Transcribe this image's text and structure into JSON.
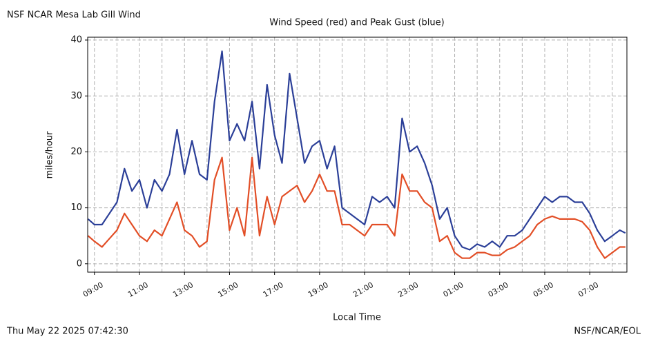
{
  "page": {
    "site": "NSF NCAR Mesa Lab Gill Wind",
    "timestamp": "Thu May 22 2025 07:42:30",
    "credit": "NSF/NCAR/EOL"
  },
  "chart_data": {
    "type": "line",
    "title": "Wind Speed (red) and Peak Gust (blue)",
    "x_label": "Local Time",
    "y_label": "miles/hour",
    "x": [
      "08:43",
      "09:00",
      "09:20",
      "09:40",
      "10:00",
      "10:20",
      "10:40",
      "11:00",
      "11:20",
      "11:40",
      "12:00",
      "12:20",
      "12:40",
      "13:00",
      "13:20",
      "13:40",
      "14:00",
      "14:20",
      "14:40",
      "15:00",
      "15:20",
      "15:40",
      "16:00",
      "16:20",
      "16:40",
      "17:00",
      "17:20",
      "17:40",
      "18:00",
      "18:20",
      "18:40",
      "19:00",
      "19:20",
      "19:40",
      "20:00",
      "20:20",
      "20:40",
      "21:00",
      "21:20",
      "21:40",
      "22:00",
      "22:20",
      "22:40",
      "23:00",
      "23:20",
      "23:40",
      "00:00",
      "00:20",
      "00:40",
      "01:00",
      "01:20",
      "01:40",
      "02:00",
      "02:20",
      "02:40",
      "03:00",
      "03:20",
      "03:40",
      "04:00",
      "04:20",
      "04:40",
      "05:00",
      "05:20",
      "05:40",
      "06:00",
      "06:20",
      "06:40",
      "07:00",
      "07:20",
      "07:40",
      "08:00",
      "08:20",
      "08:35"
    ],
    "series": [
      {
        "name": "Peak Gust",
        "color": "#2b3f98",
        "values": [
          8,
          7,
          7,
          9,
          11,
          17,
          13,
          15,
          10,
          15,
          13,
          16,
          24,
          16,
          22,
          16,
          15,
          29,
          38,
          22,
          25,
          22,
          29,
          17,
          32,
          23,
          18,
          34,
          26,
          18,
          21,
          22,
          17,
          21,
          10,
          9,
          8,
          7,
          12,
          11,
          12,
          10,
          26,
          20,
          21,
          18,
          14,
          8,
          10,
          5,
          3,
          2.5,
          3.5,
          3,
          4,
          3,
          5,
          5,
          6,
          8,
          10,
          12,
          11,
          12,
          12,
          11,
          11,
          9,
          6,
          4,
          5,
          6,
          5.5
        ]
      },
      {
        "name": "Wind Speed",
        "color": "#e24e26",
        "values": [
          5,
          4,
          3,
          4.5,
          6,
          9,
          7,
          5,
          4,
          6,
          5,
          8,
          11,
          6,
          5,
          3,
          4,
          15,
          19,
          6,
          10,
          5,
          19,
          5,
          12,
          7,
          12,
          13,
          14,
          11,
          13,
          16,
          13,
          13,
          7,
          7,
          6,
          5,
          7,
          7,
          7,
          5,
          16,
          13,
          13,
          11,
          10,
          4,
          5,
          2,
          1,
          1,
          2,
          2,
          1.5,
          1.5,
          2.5,
          3,
          4,
          5,
          7,
          8,
          8.5,
          8,
          8,
          8,
          7.5,
          6,
          3,
          1,
          2,
          3,
          3
        ]
      }
    ],
    "xlim": [
      "08:42",
      "08:39"
    ],
    "xticks": [
      "09:00",
      "11:00",
      "13:00",
      "15:00",
      "17:00",
      "19:00",
      "21:00",
      "23:00",
      "01:00",
      "03:00",
      "05:00",
      "07:00"
    ],
    "xminorticks": [
      "10:00",
      "12:00",
      "14:00",
      "16:00",
      "18:00",
      "20:00",
      "22:00",
      "00:00",
      "02:00",
      "04:00",
      "06:00",
      "08:00"
    ],
    "ylim": [
      -1.5,
      40.5
    ],
    "yticks": [
      0,
      10,
      20,
      30,
      40
    ],
    "grid": true
  }
}
